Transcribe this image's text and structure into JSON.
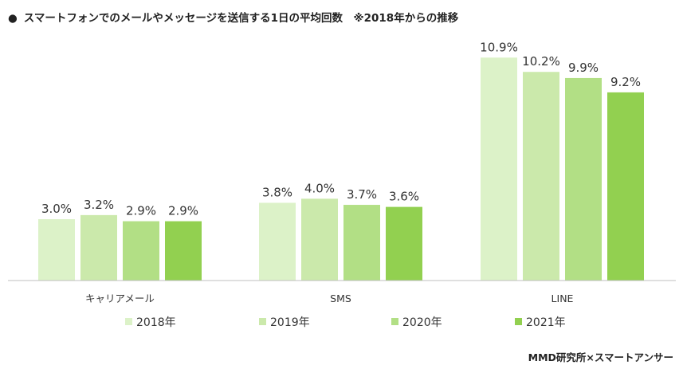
{
  "title": "スマートフォンでのメールやメッセージを送信する1日の平均回数　※2018年からの推移",
  "title_bullet": "●",
  "credit": "MMD研究所×スマートアンサー",
  "chart_data": {
    "type": "bar",
    "categories": [
      "キャリアメール",
      "SMS",
      "LINE"
    ],
    "series": [
      {
        "name": "2018年",
        "values": [
          3.0,
          3.8,
          10.9
        ],
        "labels": [
          "3.0%",
          "3.8%",
          "10.9%"
        ],
        "color": "#dcf2c8"
      },
      {
        "name": "2019年",
        "values": [
          3.2,
          4.0,
          10.2
        ],
        "labels": [
          "3.2%",
          "4.0%",
          "10.2%"
        ],
        "color": "#cbe9ab"
      },
      {
        "name": "2020年",
        "values": [
          2.9,
          3.7,
          9.9
        ],
        "labels": [
          "2.9%",
          "3.7%",
          "9.9%"
        ],
        "color": "#b2df85"
      },
      {
        "name": "2021年",
        "values": [
          2.9,
          3.6,
          9.2
        ],
        "labels": [
          "2.9%",
          "3.6%",
          "9.2%"
        ],
        "color": "#92d050"
      }
    ],
    "ylim": [
      0,
      11.3
    ],
    "grid": false,
    "legend": "bottom"
  }
}
